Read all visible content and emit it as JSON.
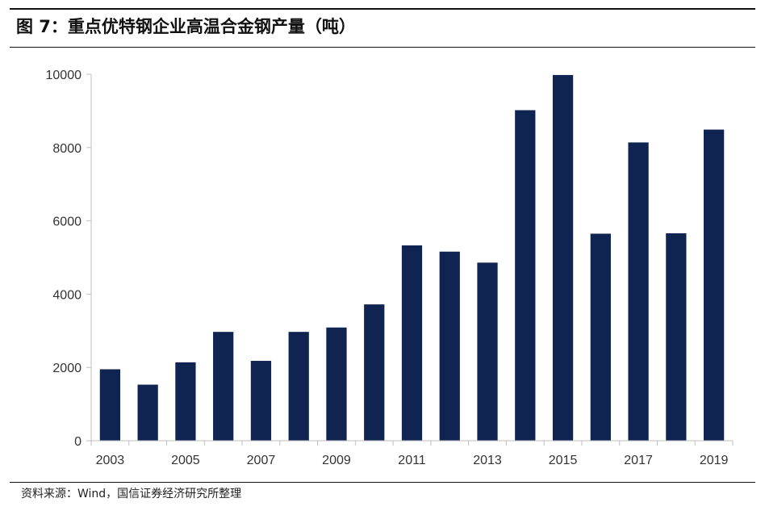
{
  "figure": {
    "title": "图 7：重点优特钢企业高温合金钢产量（吨）",
    "source": "资料来源：Wind，国信证券经济研究所整理"
  },
  "chart_data": {
    "type": "bar",
    "categories": [
      "2003",
      "2004",
      "2005",
      "2006",
      "2007",
      "2008",
      "2009",
      "2010",
      "2011",
      "2012",
      "2013",
      "2014",
      "2015",
      "2016",
      "2017",
      "2018",
      "2019"
    ],
    "x_tick_labels": [
      "2003",
      "",
      "2005",
      "",
      "2007",
      "",
      "2009",
      "",
      "2011",
      "",
      "2013",
      "",
      "2015",
      "",
      "2017",
      "",
      "2019"
    ],
    "values": [
      1950,
      1530,
      2140,
      2970,
      2180,
      2970,
      3090,
      3720,
      5330,
      5160,
      4860,
      9020,
      9980,
      5650,
      8140,
      5660,
      8490
    ],
    "ylim": [
      0,
      10000
    ],
    "yticks": [
      0,
      2000,
      4000,
      6000,
      8000,
      10000
    ],
    "grid": false,
    "legend": "none",
    "bar_color": "#0f2450",
    "axis_color": "#bfbfbf"
  }
}
